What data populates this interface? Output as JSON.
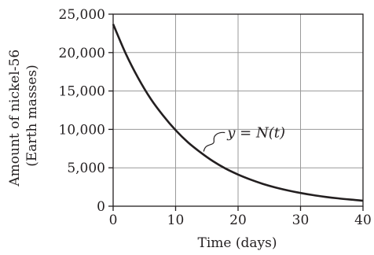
{
  "chart_data": {
    "type": "line",
    "ylabel_lines": [
      "Amount of nickel-56",
      "(Earth masses)"
    ],
    "xlabel": "Time (days)",
    "xlim": [
      0,
      40
    ],
    "ylim": [
      0,
      25000
    ],
    "x_ticks": [
      0,
      10,
      20,
      30,
      40
    ],
    "x_tick_labels": [
      "0",
      "10",
      "20",
      "30",
      "40"
    ],
    "y_ticks": [
      0,
      5000,
      10000,
      15000,
      20000,
      25000
    ],
    "y_tick_labels": [
      "0",
      "5,000",
      "10,000",
      "15,000",
      "20,000",
      "25,000"
    ],
    "grid": true,
    "series": [
      {
        "x": [
          0,
          2,
          4,
          6,
          8,
          10,
          12,
          14,
          16,
          18,
          20,
          22,
          24,
          26,
          28,
          30,
          32,
          34,
          36,
          38,
          40
        ],
        "y": [
          23700,
          19900,
          16700,
          14000,
          11800,
          9900,
          8300,
          7000,
          5850,
          4900,
          4120,
          3460,
          2900,
          2440,
          2050,
          1720,
          1440,
          1210,
          1020,
          860,
          720
        ]
      }
    ],
    "annotation": {
      "label": "y = N(t)",
      "at_x": 14.5
    }
  }
}
